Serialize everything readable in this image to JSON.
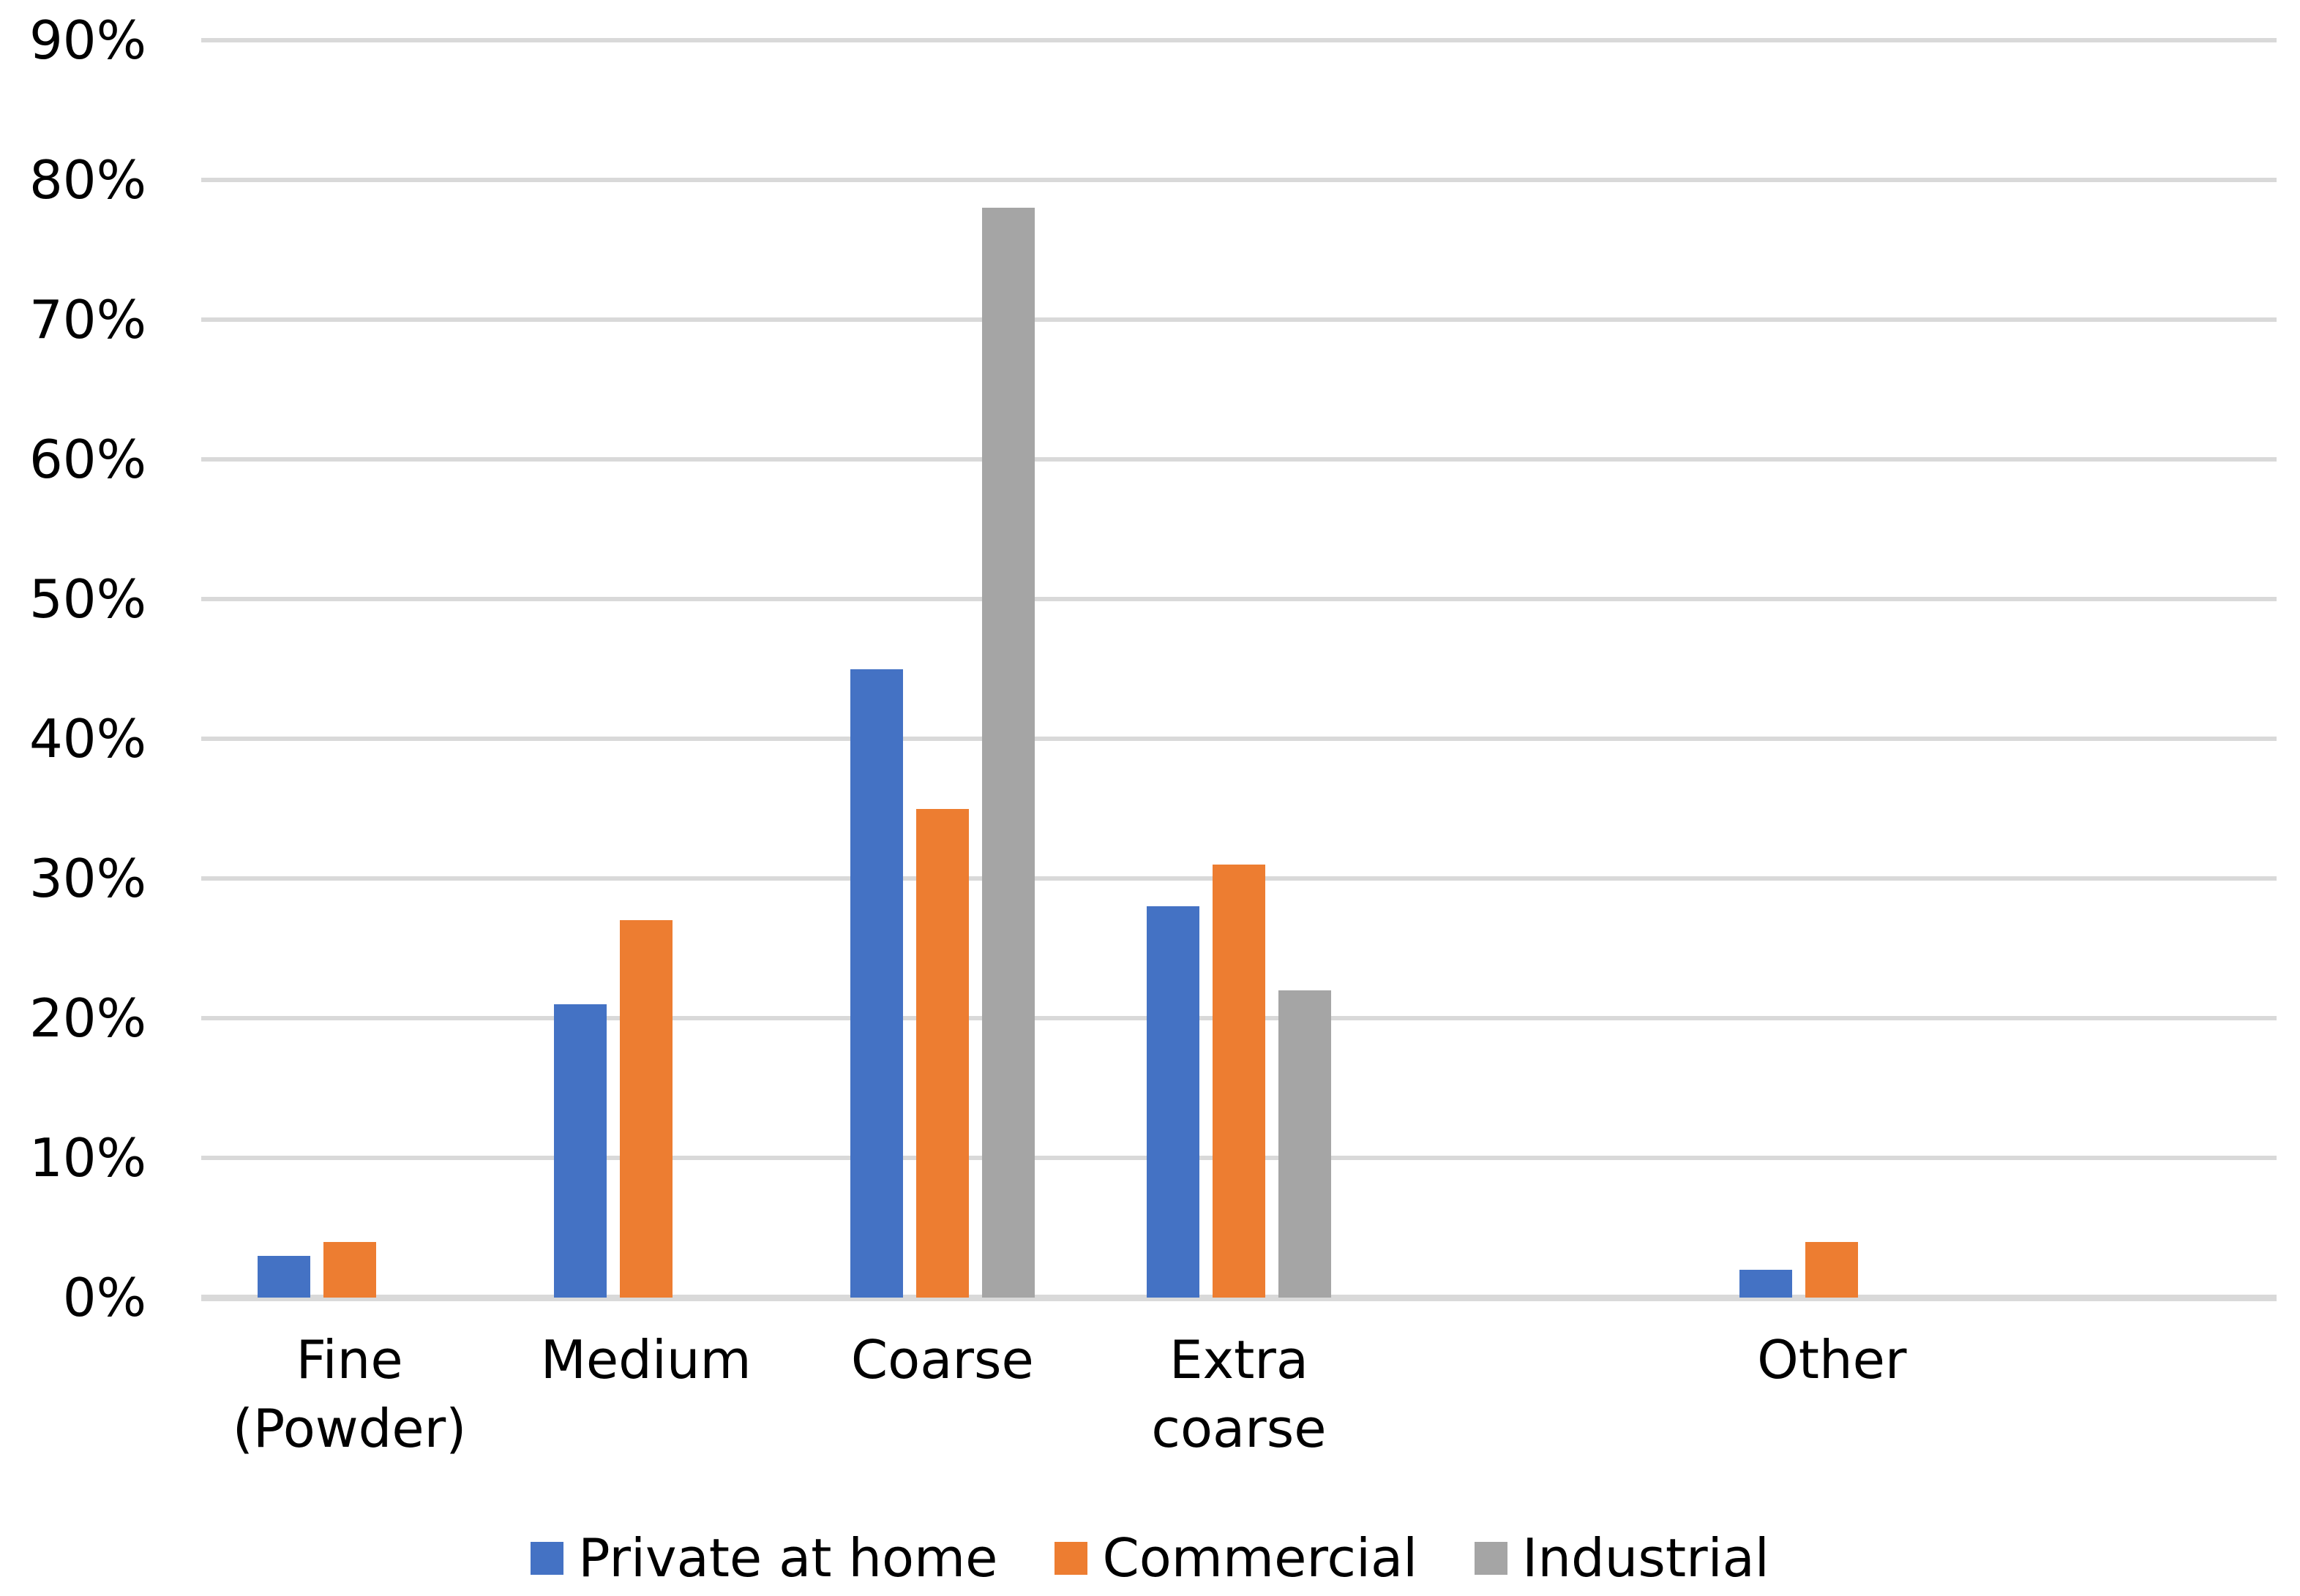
{
  "chart_data": {
    "type": "bar",
    "title": "",
    "xlabel": "",
    "ylabel": "",
    "categories": [
      "Fine (Powder)",
      "Medium",
      "Coarse",
      "Extra coarse",
      "Other"
    ],
    "series": [
      {
        "name": "Private at home",
        "color": "#4472C4",
        "values": [
          3,
          21,
          45,
          28,
          2
        ]
      },
      {
        "name": "Commercial",
        "color": "#ED7D31",
        "values": [
          4,
          27,
          35,
          31,
          4
        ]
      },
      {
        "name": "Industrial",
        "color": "#A5A5A5",
        "values": [
          null,
          null,
          78,
          22,
          null
        ]
      }
    ],
    "y_axis": {
      "min": 0,
      "max": 90,
      "step": 10,
      "tick_labels": [
        "0%",
        "10%",
        "20%",
        "30%",
        "40%",
        "50%",
        "60%",
        "70%",
        "80%",
        "90%"
      ]
    },
    "grid": "horizontal",
    "gridline_color": "#D9D9D9",
    "background_color": "#FFFFFF",
    "text_color": "#000000",
    "legend": {
      "position": "bottom",
      "items": [
        "Private at home",
        "Commercial",
        "Industrial"
      ]
    },
    "layout": {
      "slot_count": 7,
      "category_slots": [
        0,
        1,
        2,
        3,
        5
      ]
    }
  }
}
